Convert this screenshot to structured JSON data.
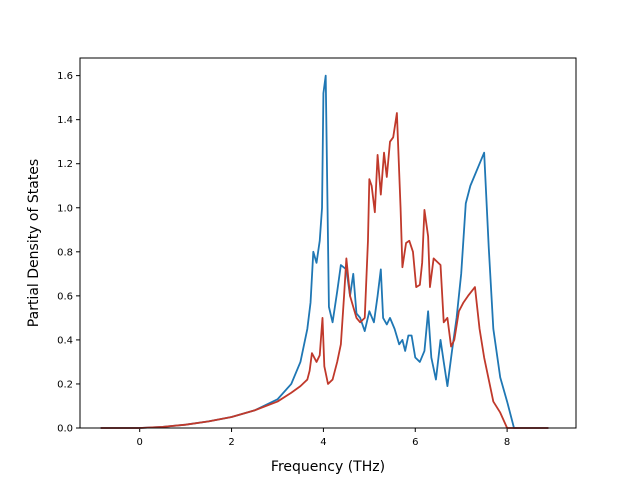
{
  "chart_data": {
    "type": "line",
    "title": "",
    "xlabel": "Frequency (THz)",
    "ylabel": "Partial Density of States",
    "xlim": [
      -1.3,
      9.5
    ],
    "ylim": [
      0,
      1.68
    ],
    "xticks": [
      0,
      2,
      4,
      6,
      8
    ],
    "yticks": [
      0.0,
      0.2,
      0.4,
      0.6,
      0.8,
      1.0,
      1.2,
      1.4,
      1.6
    ],
    "grid": false,
    "legend": "none",
    "series": [
      {
        "color": "#1f77b4",
        "x": [
          -0.85,
          0,
          0.5,
          1.0,
          1.5,
          2.0,
          2.5,
          3.0,
          3.3,
          3.5,
          3.65,
          3.72,
          3.78,
          3.85,
          3.92,
          3.97,
          4.0,
          4.05,
          4.12,
          4.2,
          4.3,
          4.38,
          4.5,
          4.58,
          4.65,
          4.72,
          4.8,
          4.9,
          5.0,
          5.1,
          5.18,
          5.25,
          5.3,
          5.38,
          5.45,
          5.55,
          5.65,
          5.72,
          5.78,
          5.85,
          5.92,
          6.0,
          6.1,
          6.2,
          6.28,
          6.35,
          6.45,
          6.55,
          6.62,
          6.7,
          6.8,
          6.9,
          7.0,
          7.1,
          7.2,
          7.3,
          7.4,
          7.5,
          7.6,
          7.7,
          7.85,
          8.0,
          8.15,
          8.9
        ],
        "values": [
          0,
          0,
          0.005,
          0.015,
          0.03,
          0.05,
          0.08,
          0.13,
          0.2,
          0.3,
          0.45,
          0.57,
          0.8,
          0.75,
          0.85,
          1.0,
          1.52,
          1.6,
          0.55,
          0.48,
          0.62,
          0.74,
          0.72,
          0.6,
          0.7,
          0.52,
          0.5,
          0.44,
          0.53,
          0.48,
          0.6,
          0.72,
          0.5,
          0.47,
          0.5,
          0.45,
          0.38,
          0.4,
          0.35,
          0.42,
          0.42,
          0.32,
          0.3,
          0.35,
          0.53,
          0.32,
          0.22,
          0.4,
          0.3,
          0.19,
          0.35,
          0.5,
          0.7,
          1.02,
          1.1,
          1.15,
          1.2,
          1.25,
          0.82,
          0.45,
          0.23,
          0.12,
          0.0,
          0.0
        ]
      },
      {
        "color": "#c0392b",
        "x": [
          -0.85,
          0,
          0.5,
          1.0,
          1.5,
          2.0,
          2.5,
          3.0,
          3.3,
          3.5,
          3.65,
          3.7,
          3.75,
          3.85,
          3.92,
          3.98,
          4.02,
          4.1,
          4.2,
          4.3,
          4.38,
          4.45,
          4.5,
          4.58,
          4.65,
          4.72,
          4.8,
          4.9,
          4.97,
          5.0,
          5.05,
          5.12,
          5.18,
          5.25,
          5.32,
          5.38,
          5.45,
          5.52,
          5.6,
          5.68,
          5.72,
          5.8,
          5.87,
          5.95,
          6.02,
          6.1,
          6.15,
          6.2,
          6.28,
          6.32,
          6.4,
          6.45,
          6.55,
          6.62,
          6.7,
          6.78,
          6.85,
          6.95,
          7.05,
          7.15,
          7.3,
          7.4,
          7.5,
          7.6,
          7.7,
          7.85,
          8.0,
          8.15,
          8.9
        ],
        "values": [
          0,
          0,
          0.005,
          0.015,
          0.03,
          0.05,
          0.08,
          0.12,
          0.16,
          0.19,
          0.22,
          0.26,
          0.34,
          0.3,
          0.33,
          0.5,
          0.28,
          0.2,
          0.22,
          0.3,
          0.38,
          0.6,
          0.77,
          0.6,
          0.55,
          0.5,
          0.48,
          0.5,
          0.85,
          1.13,
          1.1,
          0.98,
          1.24,
          1.06,
          1.25,
          1.14,
          1.3,
          1.32,
          1.43,
          1.0,
          0.73,
          0.84,
          0.85,
          0.8,
          0.64,
          0.65,
          0.75,
          0.99,
          0.87,
          0.64,
          0.77,
          0.76,
          0.74,
          0.48,
          0.5,
          0.37,
          0.4,
          0.53,
          0.57,
          0.6,
          0.64,
          0.45,
          0.32,
          0.22,
          0.12,
          0.07,
          0.0,
          0.0,
          0.0
        ]
      }
    ]
  }
}
